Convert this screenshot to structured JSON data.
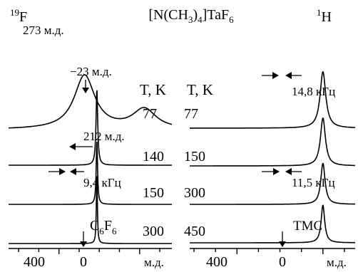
{
  "chart_data": {
    "type": "line",
    "title": "[N(CH3)4]TaF6",
    "panels": [
      {
        "nucleus": "19F",
        "nucleus_sup": "19",
        "nucleus_sym": "F",
        "xunit": "м.д.",
        "xlim": [
          650,
          -160
        ],
        "ticks": [
          400,
          0
        ],
        "tick_labels": [
          "400",
          "0"
        ],
        "temp_header": "T, K",
        "series": [
          {
            "name": "77",
            "peaks": [
              {
                "x": 273,
                "h": 0.92,
                "w": 62
              },
              {
                "x": -23,
                "h": 0.34,
                "w": 70
              }
            ]
          },
          {
            "name": "140",
            "peaks": [
              {
                "x": 212,
                "h": 1.3,
                "w": 5
              }
            ]
          },
          {
            "name": "150",
            "peaks": [
              {
                "x": 212,
                "h": 1.1,
                "w": 4
              }
            ]
          },
          {
            "name": "300",
            "peaks": [
              {
                "x": 212,
                "h": 1.2,
                "w": 3
              }
            ]
          }
        ],
        "annotations": {
          "peak1": "273 м.д.",
          "peak2": "−23 м.д.",
          "peak3": "212 м.д.",
          "width": "9,4 кГц",
          "reference": "C6F6",
          "reference_main": "C",
          "reference_sub1": "6",
          "reference_mid": "F",
          "reference_sub2": "6"
        }
      },
      {
        "nucleus": "1H",
        "nucleus_sup": "1",
        "nucleus_sym": "H",
        "xunit": "м.д.",
        "xlim": [
          620,
          -150
        ],
        "ticks": [
          400,
          0
        ],
        "tick_labels": [
          "400",
          "0"
        ],
        "temp_header": "T, K",
        "series": [
          {
            "name": "77",
            "peaks": [
              {
                "x": 0,
                "h": 1.65,
                "w": 16
              }
            ]
          },
          {
            "name": "150",
            "peaks": [
              {
                "x": 0,
                "h": 1.4,
                "w": 14
              }
            ]
          },
          {
            "name": "300",
            "peaks": [
              {
                "x": 0,
                "h": 1.2,
                "w": 12
              }
            ]
          },
          {
            "name": "450",
            "peaks": [
              {
                "x": 0,
                "h": 1.1,
                "w": 10
              }
            ]
          }
        ],
        "annotations": {
          "width_top": "14,8 кГц",
          "width_bottom": "11,5 кГц",
          "reference": "TMC"
        }
      }
    ]
  }
}
